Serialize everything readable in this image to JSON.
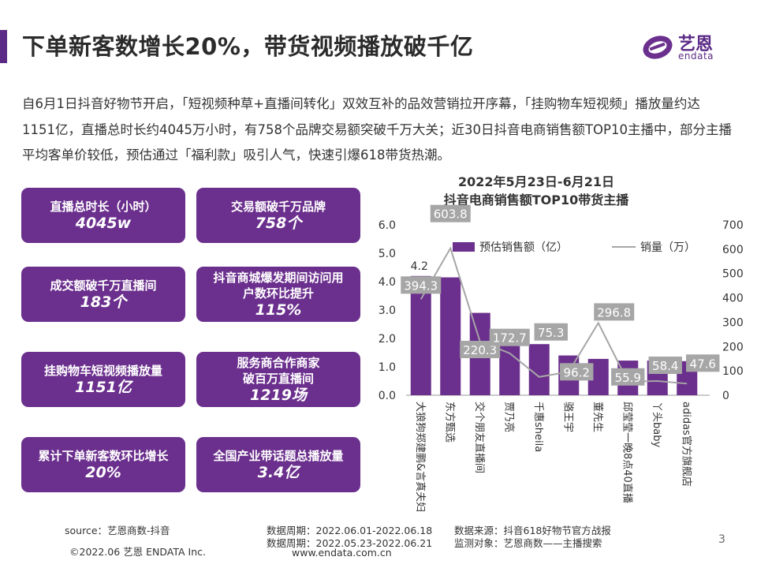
{
  "title": "下单新客数增长20%，带货视频播放破千亿",
  "logo": {
    "name": "艺恩",
    "sub": "endata"
  },
  "intro": "自6月1日抖音好物节开启，「短视频种草+直播间转化」双效互补的品效营销拉开序幕，「挂购物车短视频」播放量约达1151亿，直播总时长约4045万小时，有758个品牌交易额突破千万大关；近30日抖音电商销售额TOP10主播中，部分主播平均客单价较低，预估通过「福利款」吸引人气，快速引爆618带货热潮。",
  "stats": [
    {
      "label": "直播总时长（小时）",
      "value": "4045w"
    },
    {
      "label": "交易额破千万品牌",
      "value": "758个"
    },
    {
      "label": "成交额破千万直播间",
      "value": "183个"
    },
    {
      "label": "抖音商城爆发期间访问用\n户数环比提升",
      "value": "115%"
    },
    {
      "label": "挂购物车短视频播放量",
      "value": "1151亿"
    },
    {
      "label": "服务商合作商家\n破百万直播间",
      "value": "1219场"
    },
    {
      "label": "累计下单新客数环比增长",
      "value": "20%"
    },
    {
      "label": "全国产业带话题总播放量",
      "value": "3.4亿"
    }
  ],
  "chart_data": {
    "type": "bar+line",
    "title": "2022年5月23日-6月21日",
    "subtitle": "抖音电商销售额TOP10带货主播",
    "categories": [
      "大狼狗郑建鹏&言真夫妇",
      "东方甄选",
      "交个朋友直播间",
      "贾乃亮",
      "千惠sheila",
      "骆王宇",
      "董先生",
      "邱莹莹一晚8点40直播",
      "丫头baby",
      "adidas官方旗舰店"
    ],
    "series": [
      {
        "name": "预估销售额（亿）",
        "type": "bar",
        "axis": "left",
        "color": "#6b2f8d",
        "values": [
          4.2,
          4.15,
          2.9,
          1.8,
          1.8,
          1.4,
          1.28,
          1.22,
          1.22,
          1.2
        ]
      },
      {
        "name": "销量（万）",
        "type": "line",
        "axis": "right",
        "color": "#a6a6a6",
        "values": [
          394.3,
          603.8,
          220.3,
          172.7,
          75.3,
          96.2,
          296.8,
          55.9,
          58.4,
          47.6
        ]
      }
    ],
    "bar_labels": [
      {
        "index": 0,
        "text": "4.2"
      }
    ],
    "left_ticks": [
      "0.0",
      "1.0",
      "2.0",
      "3.0",
      "4.0",
      "5.0",
      "6.0"
    ],
    "right_ticks": [
      "0",
      "100",
      "200",
      "300",
      "400",
      "500",
      "600",
      "700"
    ],
    "ylim_left": [
      0,
      6
    ],
    "ylim_right": [
      0,
      700
    ],
    "legend_position": "top"
  },
  "footer": {
    "source": "source：艺恩商数-抖音",
    "copyright": "©2022.06 艺恩 ENDATA Inc.",
    "period1": "数据周期：2022.06.01-2022.06.18",
    "period2": "数据周期：2022.05.23-2022.06.21",
    "datasource": "数据来源：抖音618好物节官方战报",
    "target": "监测对象：艺恩商数——主播搜索",
    "url": "www.endata.com.cn",
    "page": "3"
  }
}
